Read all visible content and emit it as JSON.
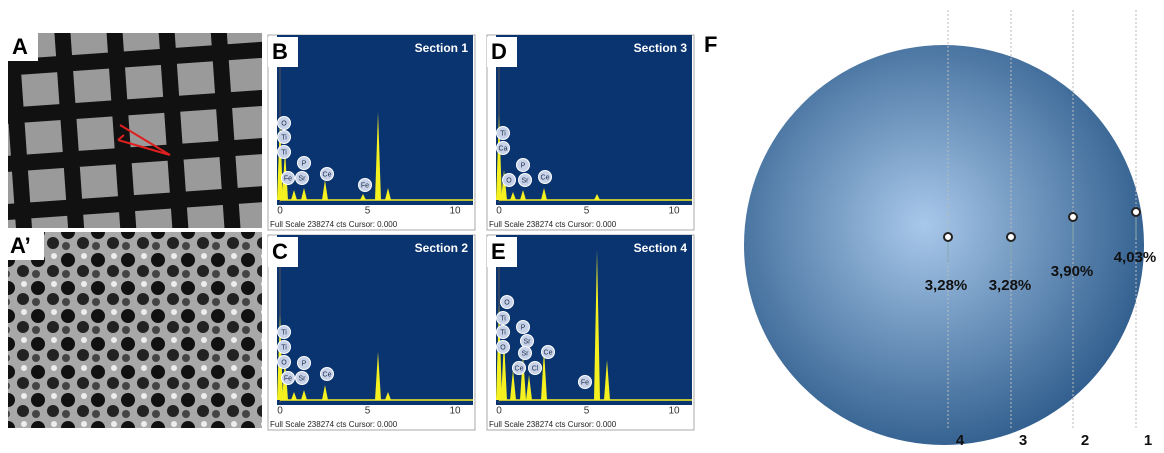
{
  "panels": {
    "a": "A",
    "a_prime": "A’",
    "f": "F"
  },
  "spectra": [
    {
      "label": "B",
      "title": "Section 1",
      "ticks": [
        "0",
        "5",
        "10"
      ],
      "footer": "Full Scale 238274 cts Cursor: 0.000",
      "elements": [
        "O",
        "Ti",
        "Ti",
        "Fe",
        "Sr",
        "P",
        "Ce",
        "Fe"
      ]
    },
    {
      "label": "C",
      "title": "Section 2",
      "ticks": [
        "0",
        "5",
        "10"
      ],
      "footer": "Full Scale 238274 cts Cursor: 0.000",
      "elements": [
        "Ti",
        "Ti",
        "O",
        "Fe",
        "Sr",
        "P",
        "Ce"
      ]
    },
    {
      "label": "D",
      "title": "Section 3",
      "ticks": [
        "0",
        "5",
        "10"
      ],
      "footer": "Full Scale 238274 cts Cursor: 0.000",
      "elements": [
        "Ti",
        "Ca",
        "O",
        "Sr",
        "P",
        "Ce"
      ]
    },
    {
      "label": "E",
      "title": "Section 4",
      "ticks": [
        "0",
        "5",
        "10"
      ],
      "footer": "Full Scale 238274 cts Cursor: 0.000",
      "elements": [
        "O",
        "Ti",
        "Ti",
        "O",
        "P",
        "Sr",
        "Sr",
        "Ce",
        "Cl",
        "Ce",
        "Fe"
      ]
    }
  ],
  "diagram": {
    "percentages": [
      "3,28%",
      "3,28%",
      "3,90%",
      "4,03%"
    ],
    "positions": [
      "4",
      "3",
      "2",
      "1"
    ]
  }
}
